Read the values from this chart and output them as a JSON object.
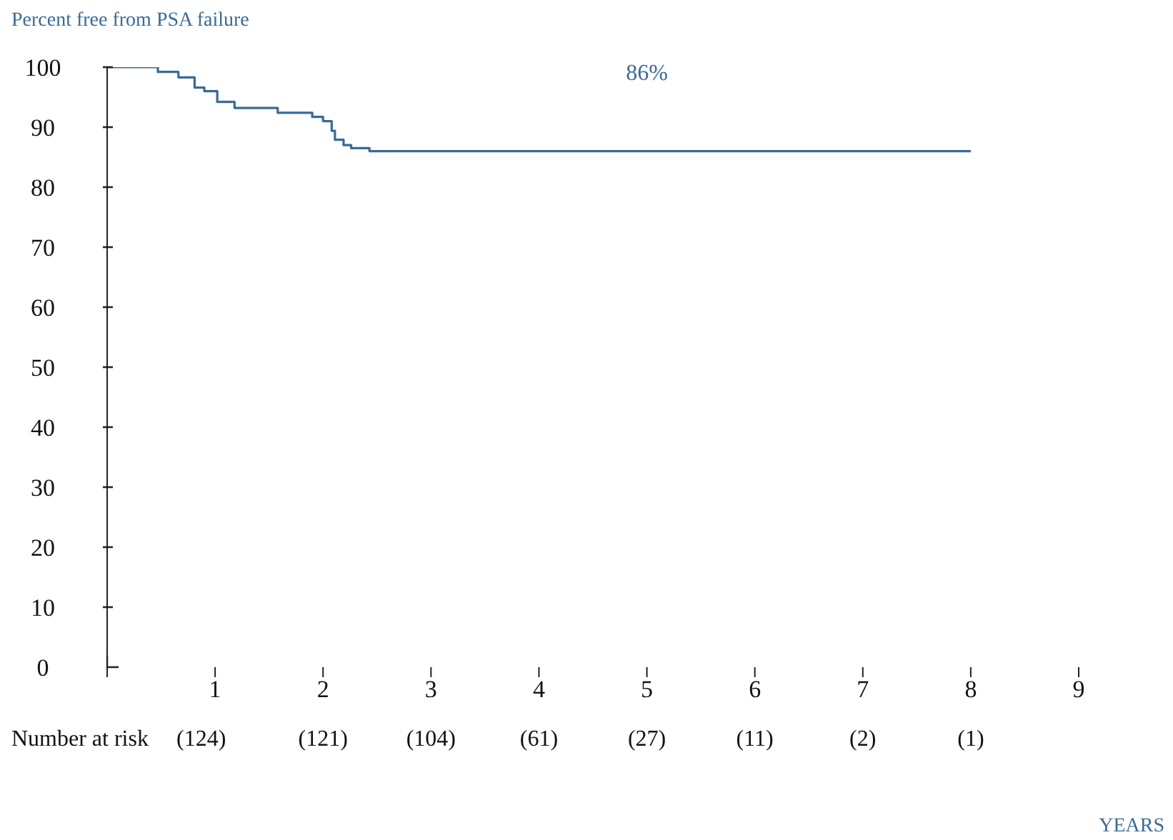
{
  "chart_data": {
    "type": "step",
    "ylabel": "Percent free from PSA failure",
    "x": [
      0,
      0.47,
      0.66,
      0.81,
      0.9,
      1.02,
      1.18,
      1.58,
      1.9,
      2.0,
      2.08,
      2.11,
      2.19,
      2.26,
      2.43,
      8.0
    ],
    "series": [
      {
        "color": "#3b6a96",
        "values": [
          100,
          99.2,
          98.3,
          96.6,
          96.0,
          94.2,
          93.2,
          92.4,
          91.7,
          91.0,
          89.4,
          87.9,
          87.0,
          86.5,
          86,
          86
        ]
      }
    ],
    "xlim": [
      0,
      9
    ],
    "xticks": [
      {
        "value": 0,
        "label": null
      },
      1,
      2,
      3,
      4,
      5,
      6,
      7,
      8,
      9
    ],
    "ylim": [
      0,
      100
    ],
    "yticks": [
      0,
      10,
      20,
      30,
      40,
      50,
      60,
      70,
      80,
      90,
      100
    ],
    "grid": false,
    "legend": false,
    "marker": "none",
    "line_style": "solid",
    "annotations": [
      {
        "text": "86%",
        "x": 5,
        "y": 86
      },
      "YEARS",
      "Number at risk",
      "(124)",
      "(121)",
      "(104)",
      "(61)",
      "(27)",
      "(11)",
      "(2)",
      "(1)"
    ]
  }
}
